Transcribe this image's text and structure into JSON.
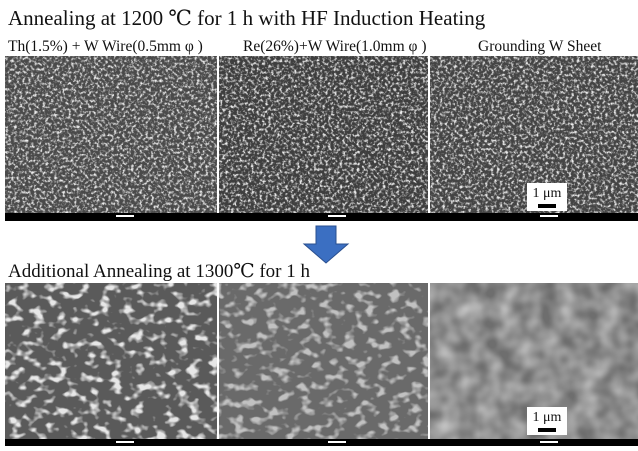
{
  "header": {
    "title": "Annealing at 1200 ℃  for 1 h with HF Induction Heating"
  },
  "top_row": {
    "labels": [
      "Th(1.5%) + W Wire(0.5mm φ )",
      "Re(26%)+W Wire(1.0mm φ )",
      "Grounding W Sheet"
    ],
    "scale_bar": "1 μm"
  },
  "bottom_row": {
    "title": "Additional  Annealing at 1300℃  for 1 h",
    "scale_bar": "1 μm"
  }
}
